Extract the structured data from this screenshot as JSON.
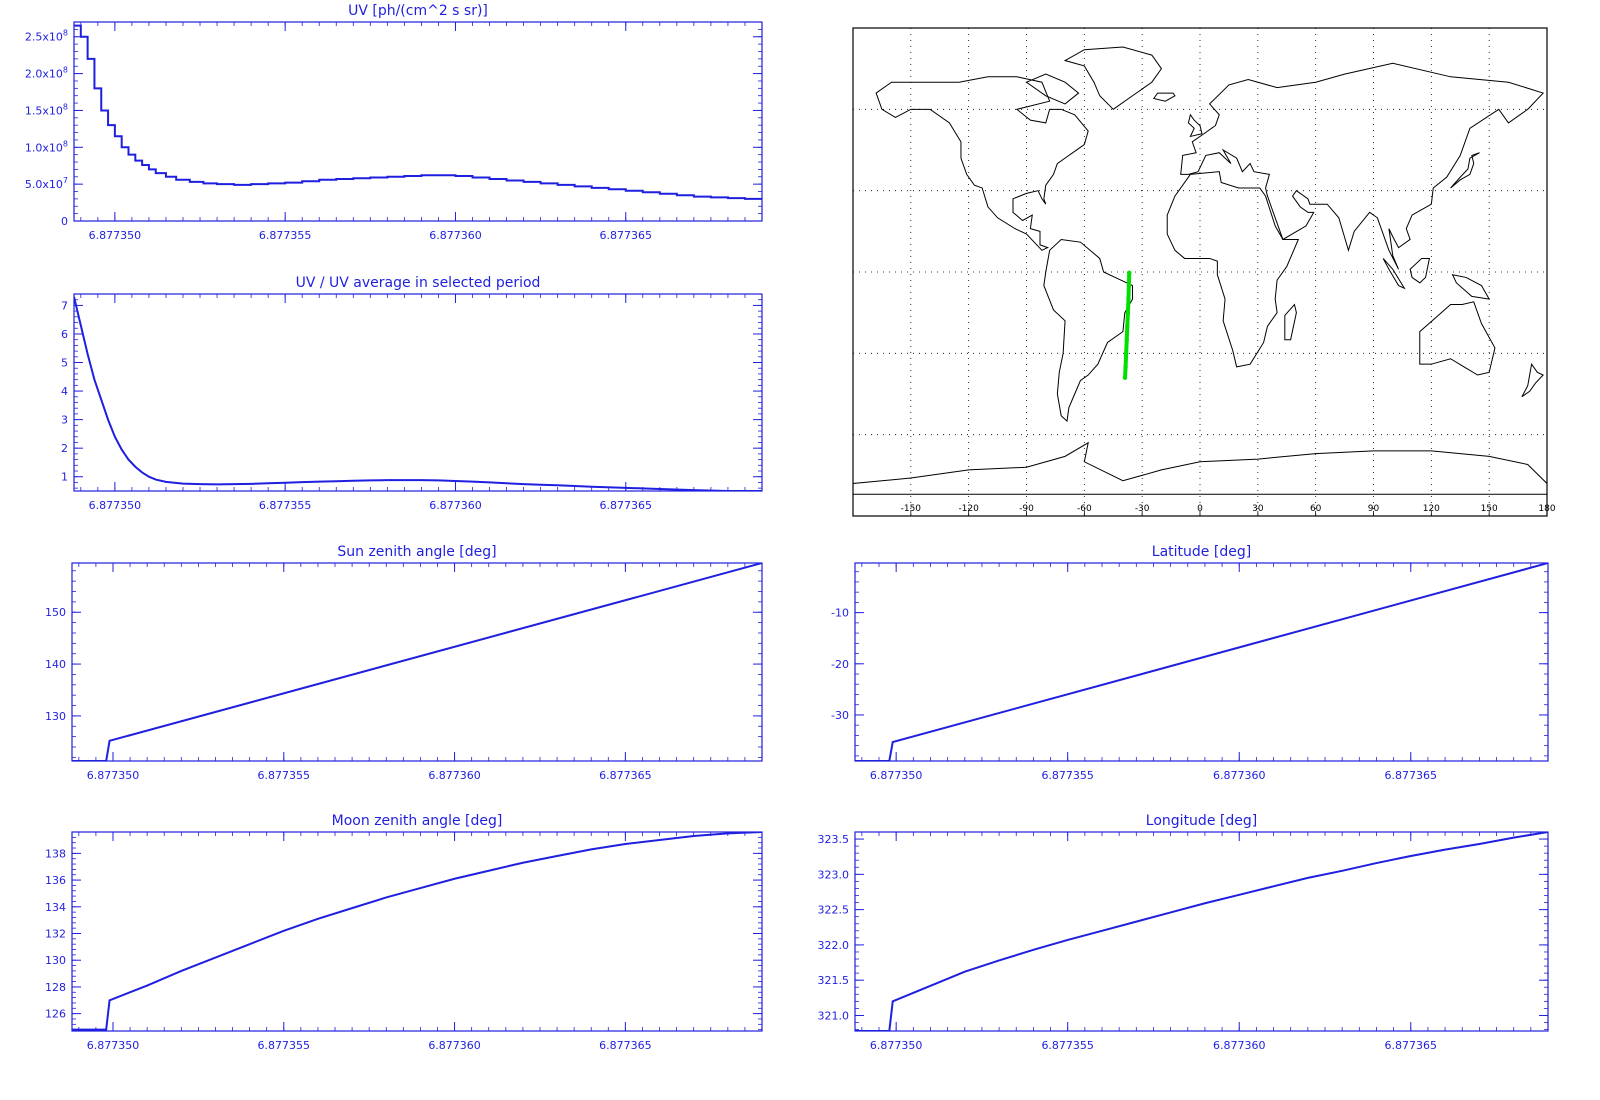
{
  "chart_data": [
    {
      "id": "uv",
      "type": "line",
      "step": true,
      "title": "UV [ph/(cm^2 s sr)]",
      "xlim": [
        6.8773488,
        6.877369
      ],
      "ylim": [
        0,
        270000000
      ],
      "xticks": [
        "6.877350",
        "6.877355",
        "6.877360",
        "6.877365"
      ],
      "xtick_values": [
        6.87735,
        6.877355,
        6.87736,
        6.877365
      ],
      "yticks": [
        {
          "value": 0,
          "mant": "0",
          "exp": ""
        },
        {
          "value": 50000000,
          "mant": "5.0x10",
          "exp": "7"
        },
        {
          "value": 100000000,
          "mant": "1.0x10",
          "exp": "8"
        },
        {
          "value": 150000000,
          "mant": "1.5x10",
          "exp": "8"
        },
        {
          "value": 200000000,
          "mant": "2.0x10",
          "exp": "8"
        },
        {
          "value": 250000000,
          "mant": "2.5x10",
          "exp": "8"
        }
      ],
      "series": [
        {
          "x": [
            6.8773488,
            6.877349,
            6.8773492,
            6.8773494,
            6.8773496,
            6.8773498,
            6.87735,
            6.8773502,
            6.8773504,
            6.8773506,
            6.8773508,
            6.877351,
            6.8773512,
            6.8773515,
            6.8773518,
            6.8773522,
            6.8773526,
            6.877353,
            6.8773535,
            6.877354,
            6.8773545,
            6.877355,
            6.8773555,
            6.877356,
            6.8773565,
            6.877357,
            6.8773575,
            6.877358,
            6.8773585,
            6.877359,
            6.8773595,
            6.87736,
            6.8773605,
            6.877361,
            6.8773615,
            6.877362,
            6.8773625,
            6.877363,
            6.8773635,
            6.877364,
            6.8773645,
            6.877365,
            6.8773655,
            6.877366,
            6.8773665,
            6.877367,
            6.8773675,
            6.877368,
            6.8773685,
            6.877369
          ],
          "y": [
            265000000,
            250000000,
            220000000,
            180000000,
            150000000,
            130000000,
            115000000,
            100000000,
            90000000,
            82000000,
            76000000,
            70000000,
            65000000,
            60000000,
            56000000,
            53000000,
            51000000,
            50000000,
            49000000,
            50000000,
            51000000,
            52000000,
            54000000,
            56000000,
            57000000,
            58000000,
            59000000,
            60000000,
            61000000,
            62000000,
            62000000,
            61000000,
            59000000,
            57000000,
            55000000,
            53000000,
            51000000,
            49000000,
            47000000,
            45000000,
            43000000,
            41000000,
            39000000,
            37000000,
            35000000,
            33000000,
            32000000,
            31000000,
            30000000,
            30000000
          ]
        }
      ]
    },
    {
      "id": "ratio",
      "type": "line",
      "title": "UV / UV average in selected period",
      "xlim": [
        6.8773488,
        6.877369
      ],
      "ylim": [
        0.5,
        7.4
      ],
      "xticks": [
        "6.877350",
        "6.877355",
        "6.877360",
        "6.877365"
      ],
      "xtick_values": [
        6.87735,
        6.877355,
        6.87736,
        6.877365
      ],
      "yticks": [
        "1",
        "2",
        "3",
        "4",
        "5",
        "6",
        "7"
      ],
      "ytick_values": [
        1,
        2,
        3,
        4,
        5,
        6,
        7
      ],
      "series": [
        {
          "x": [
            6.8773488,
            6.8773489,
            6.877349,
            6.8773492,
            6.8773494,
            6.8773496,
            6.8773498,
            6.87735,
            6.8773502,
            6.8773504,
            6.8773506,
            6.8773508,
            6.877351,
            6.8773512,
            6.8773515,
            6.877352,
            6.8773525,
            6.877353,
            6.8773535,
            6.877354,
            6.8773545,
            6.877355,
            6.8773555,
            6.877356,
            6.8773565,
            6.877357,
            6.8773575,
            6.877358,
            6.8773585,
            6.877359,
            6.8773595,
            6.87736,
            6.8773605,
            6.877361,
            6.8773615,
            6.877362,
            6.8773625,
            6.877363,
            6.877364,
            6.877365,
            6.877366,
            6.877367,
            6.877368,
            6.877369
          ],
          "y": [
            7.3,
            6.8,
            6.3,
            5.3,
            4.4,
            3.7,
            3.0,
            2.4,
            1.95,
            1.6,
            1.35,
            1.15,
            1.0,
            0.9,
            0.82,
            0.76,
            0.74,
            0.73,
            0.74,
            0.75,
            0.77,
            0.79,
            0.81,
            0.83,
            0.84,
            0.86,
            0.87,
            0.88,
            0.88,
            0.88,
            0.87,
            0.85,
            0.83,
            0.8,
            0.77,
            0.74,
            0.72,
            0.7,
            0.65,
            0.61,
            0.57,
            0.53,
            0.5,
            0.5
          ]
        }
      ]
    },
    {
      "id": "sun",
      "type": "line",
      "title": "Sun zenith angle [deg]",
      "xlim": [
        6.8773488,
        6.877369
      ],
      "ylim": [
        121.3,
        159.5
      ],
      "xticks": [
        "6.877350",
        "6.877355",
        "6.877360",
        "6.877365"
      ],
      "xtick_values": [
        6.87735,
        6.877355,
        6.87736,
        6.877365
      ],
      "yticks": [
        "130",
        "140",
        "150"
      ],
      "ytick_values": [
        130,
        140,
        150
      ],
      "series": [
        {
          "x": [
            6.8773488,
            6.8773498,
            6.8773499,
            6.877369
          ],
          "y": [
            121.3,
            121.3,
            125.2,
            159.5
          ]
        }
      ]
    },
    {
      "id": "lat",
      "type": "line",
      "title": "Latitude [deg]",
      "xlim": [
        6.8773488,
        6.877369
      ],
      "ylim": [
        -39,
        -0.3
      ],
      "xticks": [
        "6.877350",
        "6.877355",
        "6.877360",
        "6.877365"
      ],
      "xtick_values": [
        6.87735,
        6.877355,
        6.87736,
        6.877365
      ],
      "yticks": [
        "-30",
        "-20",
        "-10"
      ],
      "ytick_values": [
        -30,
        -20,
        -10
      ],
      "series": [
        {
          "x": [
            6.8773488,
            6.8773498,
            6.8773499,
            6.877369
          ],
          "y": [
            -39,
            -39,
            -35.3,
            -0.3
          ]
        }
      ]
    },
    {
      "id": "moon",
      "type": "line",
      "title": "Moon zenith angle [deg]",
      "xlim": [
        6.8773488,
        6.877369
      ],
      "ylim": [
        124.7,
        139.6
      ],
      "xticks": [
        "6.877350",
        "6.877355",
        "6.877360",
        "6.877365"
      ],
      "xtick_values": [
        6.87735,
        6.877355,
        6.87736,
        6.877365
      ],
      "yticks": [
        "126",
        "128",
        "130",
        "132",
        "134",
        "136",
        "138"
      ],
      "ytick_values": [
        126,
        128,
        130,
        132,
        134,
        136,
        138
      ],
      "series": [
        {
          "x": [
            6.8773488,
            6.8773498,
            6.8773499,
            6.877351,
            6.877352,
            6.877353,
            6.877354,
            6.877355,
            6.877356,
            6.877357,
            6.877358,
            6.877359,
            6.87736,
            6.877361,
            6.877362,
            6.877363,
            6.877364,
            6.877365,
            6.877366,
            6.877367,
            6.877368,
            6.877369
          ],
          "y": [
            124.8,
            124.8,
            127.0,
            128.1,
            129.2,
            130.2,
            131.2,
            132.2,
            133.1,
            133.9,
            134.7,
            135.4,
            136.1,
            136.7,
            137.3,
            137.8,
            138.3,
            138.7,
            139.0,
            139.3,
            139.5,
            139.6
          ]
        }
      ]
    },
    {
      "id": "lon",
      "type": "line",
      "title": "Longitude [deg]",
      "xlim": [
        6.8773488,
        6.877369
      ],
      "ylim": [
        320.78,
        323.6
      ],
      "xticks": [
        "6.877350",
        "6.877355",
        "6.877360",
        "6.877365"
      ],
      "xtick_values": [
        6.87735,
        6.877355,
        6.87736,
        6.877365
      ],
      "yticks": [
        "321.0",
        "321.5",
        "322.0",
        "322.5",
        "323.0",
        "323.5"
      ],
      "ytick_values": [
        321.0,
        321.5,
        322.0,
        322.5,
        323.0,
        323.5
      ],
      "series": [
        {
          "x": [
            6.8773488,
            6.8773498,
            6.8773499,
            6.877351,
            6.877352,
            6.877353,
            6.877354,
            6.877355,
            6.877356,
            6.877357,
            6.877358,
            6.877359,
            6.87736,
            6.877361,
            6.877362,
            6.877363,
            6.877364,
            6.877365,
            6.877366,
            6.877367,
            6.877368,
            6.877369
          ],
          "y": [
            320.78,
            320.78,
            321.2,
            321.42,
            321.62,
            321.78,
            321.93,
            322.07,
            322.2,
            322.33,
            322.46,
            322.59,
            322.71,
            322.83,
            322.95,
            323.05,
            323.16,
            323.26,
            323.35,
            323.43,
            323.52,
            323.6
          ]
        }
      ]
    },
    {
      "id": "map",
      "type": "scatter",
      "title": "",
      "xlim": [
        -180,
        180
      ],
      "ylim": [
        -90,
        90
      ],
      "xticks": [
        "-150",
        "-120",
        "-90",
        "-60",
        "-30",
        "0",
        "30",
        "60",
        "90",
        "120",
        "150",
        "180"
      ],
      "xtick_values": [
        -150,
        -120,
        -90,
        -60,
        -30,
        0,
        30,
        60,
        90,
        120,
        150,
        180
      ],
      "grid": true,
      "series": [
        {
          "x": [
            -36.7,
            -36.9,
            -37.1,
            -37.4,
            -37.7,
            -38.0,
            -38.3,
            -38.6,
            -38.9
          ],
          "y": [
            -0.3,
            -5,
            -10,
            -15,
            -20,
            -25,
            -30,
            -35,
            -39
          ],
          "color": "#00e000"
        }
      ]
    }
  ]
}
